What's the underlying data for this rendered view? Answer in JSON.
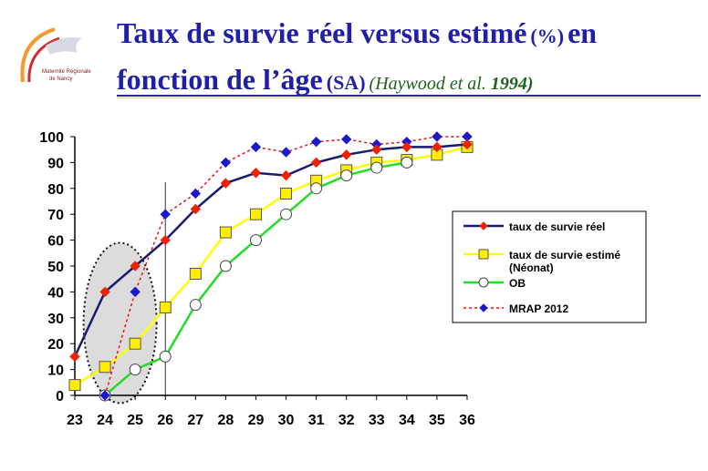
{
  "title": {
    "line1_main": "Taux de survie réel versus estimé",
    "line1_unit": "(%)",
    "line1_end": "en",
    "line2_main": "fonction de l’âge",
    "line2_unit": "(SA)",
    "ref_authors": "(Haywood et al.",
    "ref_year": "1994)"
  },
  "logo": {
    "text1": "Maternité Régionale",
    "text2": "de Nancy"
  },
  "chart_data": {
    "type": "line",
    "x": [
      23,
      24,
      25,
      26,
      27,
      28,
      29,
      30,
      31,
      32,
      33,
      34,
      35,
      36
    ],
    "xlim": [
      23,
      36
    ],
    "ylim": [
      0,
      100
    ],
    "yticks": [
      0,
      10,
      20,
      30,
      40,
      50,
      60,
      70,
      80,
      90,
      100
    ],
    "xlabel": "",
    "ylabel": "",
    "grid": false,
    "legend_position": "right",
    "vertical_marker_x": 26,
    "highlight_ellipse": "around x 24-25",
    "series": [
      {
        "name": "taux de survie réel",
        "color": "#1a1a6e",
        "marker": "diamond",
        "marker_color": "#ee2200",
        "x": [
          23,
          24,
          25,
          26,
          27,
          28,
          29,
          30,
          31,
          32,
          33,
          34,
          35,
          36
        ],
        "values": [
          15,
          40,
          50,
          60,
          72,
          82,
          86,
          85,
          90,
          93,
          95,
          96,
          96,
          97
        ]
      },
      {
        "name": "taux de survie estimé",
        "name_line2": "(Néonat)",
        "color": "#ffff00",
        "marker": "square",
        "marker_color": "#ffee00",
        "x": [
          23,
          24,
          25,
          26,
          27,
          28,
          29,
          30,
          31,
          32,
          33,
          34,
          35,
          36
        ],
        "values": [
          4,
          11,
          20,
          34,
          47,
          63,
          70,
          78,
          83,
          87,
          90,
          91,
          93,
          96
        ]
      },
      {
        "name": "OB",
        "color": "#22dd22",
        "marker": "circle",
        "marker_color": "#ffffff",
        "x": [
          24,
          25,
          26,
          27,
          28,
          29,
          30,
          31,
          32,
          33,
          34
        ],
        "values": [
          0,
          10,
          15,
          35,
          50,
          60,
          70,
          80,
          85,
          88,
          90
        ]
      },
      {
        "name": "MRAP 2012",
        "color": "#ee1111",
        "dash": true,
        "marker": "diamond",
        "marker_color": "#1a1acc",
        "x": [
          24,
          25,
          26,
          27,
          28,
          29,
          30,
          31,
          32,
          33,
          34,
          35,
          36
        ],
        "values": [
          0,
          40,
          70,
          78,
          90,
          96,
          94,
          98,
          99,
          97,
          98,
          100,
          100
        ]
      }
    ]
  }
}
